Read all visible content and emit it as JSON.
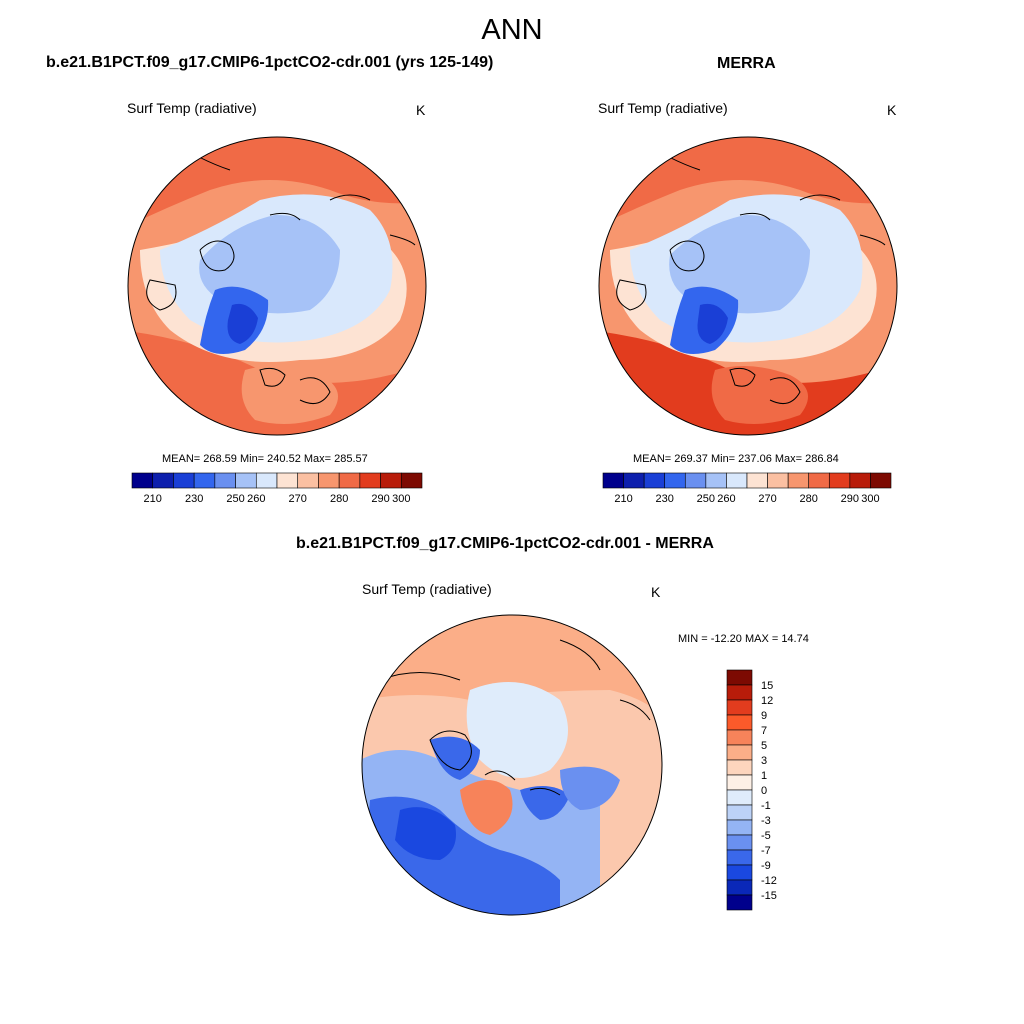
{
  "title": "ANN",
  "panels": [
    {
      "title": "b.e21.B1PCT.f09_g17.CMIP6-1pctCO2-cdr.001 (yrs 125-149)",
      "variable": "Surf Temp (radiative)",
      "units": "K",
      "mean": "268.59",
      "min": "240.52",
      "max": "285.57",
      "stats_text": "MEAN= 268.59  Min= 240.52  Max= 285.57"
    },
    {
      "title": "MERRA",
      "variable": "Surf Temp (radiative)",
      "units": "K",
      "mean": "269.37",
      "min": "237.06",
      "max": "286.84",
      "stats_text": "MEAN= 269.37  Min= 237.06  Max= 286.84"
    },
    {
      "title": "b.e21.B1PCT.f09_g17.CMIP6-1pctCO2-cdr.001 - MERRA",
      "variable": "Surf Temp (radiative)",
      "units": "K",
      "min": "-12.20",
      "max": "14.74",
      "stats_text": "MIN = -12.20 MAX =  14.74"
    }
  ],
  "colorbar_abs": {
    "labels": [
      "210",
      "230",
      "250",
      "260",
      "270",
      "280",
      "290",
      "300"
    ],
    "colors": [
      "#00008c",
      "#0d1fad",
      "#1a3fd6",
      "#3366ee",
      "#6a90f0",
      "#a6c2f7",
      "#d9e8fc",
      "#fde3d3",
      "#fbc0a2",
      "#f7966e",
      "#f06a46",
      "#e23c1e",
      "#b81c0a",
      "#7d0a02"
    ]
  },
  "colorbar_diff": {
    "labels": [
      "15",
      "12",
      "9",
      "7",
      "5",
      "3",
      "1",
      "0",
      "-1",
      "-3",
      "-5",
      "-7",
      "-9",
      "-12",
      "-15"
    ],
    "colors": [
      "#7d0a02",
      "#b81c0a",
      "#e23c1e",
      "#fb5a2a",
      "#f7835a",
      "#fbae88",
      "#fdd5bd",
      "#fdf0e6",
      "#dfecfb",
      "#bcd2f7",
      "#94b4f4",
      "#6a90f0",
      "#3a68ea",
      "#1a48e0",
      "#0a28b8",
      "#00008c"
    ]
  },
  "map_colors": {
    "ocean_cold": "#b3c9f5",
    "ice_sheet": "#3f6ee6",
    "warm": "#f2a07e",
    "hot": "#e8643e",
    "mild": "#fcd9c5",
    "diff_pos": "#f9c2a5",
    "diff_neg": "#3f6ee6"
  }
}
